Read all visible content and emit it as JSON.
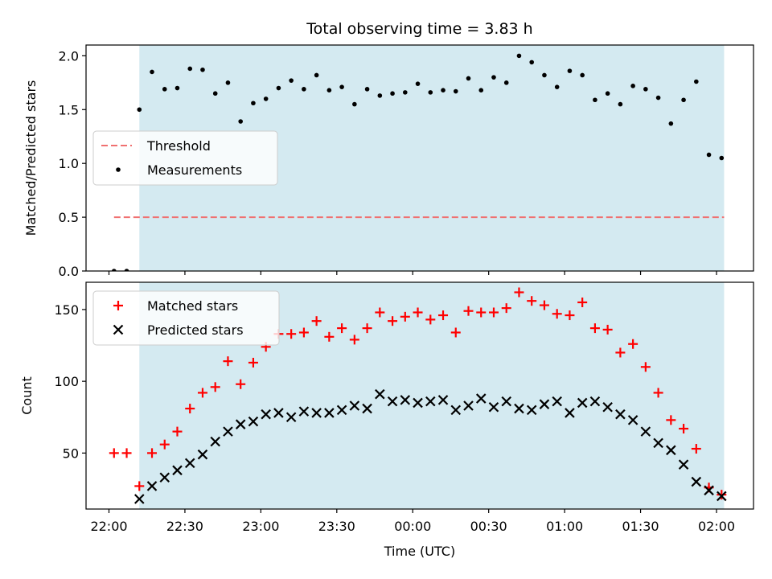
{
  "title": "Total observing time = 3.83 h",
  "colors": {
    "observing_window": "#d4eaf1",
    "threshold": "#f07070",
    "measurements": "#000000",
    "matched": "#ff0000",
    "predicted": "#000000"
  },
  "chart_data": [
    {
      "type": "scatter",
      "panel": "top",
      "ylabel": "Matched/Predicted stars",
      "ylim": [
        0,
        2.1
      ],
      "yticks": [
        0,
        0.5,
        1.0,
        1.5,
        2.0
      ],
      "ytick_labels": [
        "0.0",
        "0.5",
        "1.0",
        "1.5",
        "2.0"
      ],
      "legend": {
        "placement": "center-left",
        "entries": [
          "Threshold",
          "Measurements"
        ]
      },
      "observing_window": {
        "start": "22:12",
        "end": "02:03"
      },
      "threshold": {
        "value": 0.5,
        "start": "22:02",
        "end": "02:03"
      },
      "series": [
        {
          "name": "Measurements",
          "marker": "dot",
          "x": [
            "22:02",
            "22:07",
            "22:12",
            "22:17",
            "22:22",
            "22:27",
            "22:32",
            "22:37",
            "22:42",
            "22:47",
            "22:52",
            "22:57",
            "23:02",
            "23:07",
            "23:12",
            "23:17",
            "23:22",
            "23:27",
            "23:32",
            "23:37",
            "23:42",
            "23:47",
            "23:52",
            "23:57",
            "00:02",
            "00:07",
            "00:12",
            "00:17",
            "00:22",
            "00:27",
            "00:32",
            "00:37",
            "00:42",
            "00:47",
            "00:52",
            "00:57",
            "01:02",
            "01:07",
            "01:12",
            "01:17",
            "01:22",
            "01:27",
            "01:32",
            "01:37",
            "01:42",
            "01:47",
            "01:52",
            "01:57",
            "02:02"
          ],
          "values": [
            0.0,
            0.0,
            1.5,
            1.85,
            1.69,
            1.7,
            1.88,
            1.87,
            1.65,
            1.75,
            1.39,
            1.56,
            1.6,
            1.7,
            1.77,
            1.69,
            1.82,
            1.68,
            1.71,
            1.55,
            1.69,
            1.63,
            1.65,
            1.66,
            1.74,
            1.66,
            1.68,
            1.67,
            1.79,
            1.68,
            1.8,
            1.75,
            2.0,
            1.94,
            1.82,
            1.71,
            1.86,
            1.82,
            1.59,
            1.65,
            1.55,
            1.72,
            1.69,
            1.61,
            1.37,
            1.59,
            1.76,
            1.08,
            1.05
          ]
        }
      ]
    },
    {
      "type": "scatter",
      "panel": "bottom",
      "xlabel": "Time (UTC)",
      "ylabel": "Count",
      "ylim": [
        11,
        169
      ],
      "yticks": [
        50,
        100,
        150
      ],
      "ytick_labels": [
        "50",
        "100",
        "150"
      ],
      "xticks": [
        "22:00",
        "22:30",
        "23:00",
        "23:30",
        "00:00",
        "00:30",
        "01:00",
        "01:30",
        "02:00"
      ],
      "legend": {
        "placement": "top-left",
        "entries": [
          "Matched stars",
          "Predicted stars"
        ]
      },
      "observing_window": {
        "start": "22:12",
        "end": "02:03"
      },
      "series": [
        {
          "name": "Matched stars",
          "marker": "plus",
          "x": [
            "22:02",
            "22:07",
            "22:12",
            "22:17",
            "22:22",
            "22:27",
            "22:32",
            "22:37",
            "22:42",
            "22:47",
            "22:52",
            "22:57",
            "23:02",
            "23:07",
            "23:12",
            "23:17",
            "23:22",
            "23:27",
            "23:32",
            "23:37",
            "23:42",
            "23:47",
            "23:52",
            "23:57",
            "00:02",
            "00:07",
            "00:12",
            "00:17",
            "00:22",
            "00:27",
            "00:32",
            "00:37",
            "00:42",
            "00:47",
            "00:52",
            "00:57",
            "01:02",
            "01:07",
            "01:12",
            "01:17",
            "01:22",
            "01:27",
            "01:32",
            "01:37",
            "01:42",
            "01:47",
            "01:52",
            "01:57",
            "02:02"
          ],
          "values": [
            50,
            50,
            27,
            50,
            56,
            65,
            81,
            92,
            96,
            114,
            98,
            113,
            124,
            133,
            133,
            134,
            142,
            131,
            137,
            129,
            137,
            148,
            142,
            145,
            148,
            143,
            146,
            134,
            149,
            148,
            148,
            151,
            162,
            156,
            153,
            147,
            146,
            155,
            137,
            136,
            120,
            126,
            110,
            92,
            73,
            67,
            53,
            26,
            21
          ]
        },
        {
          "name": "Predicted stars",
          "marker": "x",
          "x": [
            "22:12",
            "22:17",
            "22:22",
            "22:27",
            "22:32",
            "22:37",
            "22:42",
            "22:47",
            "22:52",
            "22:57",
            "23:02",
            "23:07",
            "23:12",
            "23:17",
            "23:22",
            "23:27",
            "23:32",
            "23:37",
            "23:42",
            "23:47",
            "23:52",
            "23:57",
            "00:02",
            "00:07",
            "00:12",
            "00:17",
            "00:22",
            "00:27",
            "00:32",
            "00:37",
            "00:42",
            "00:47",
            "00:52",
            "00:57",
            "01:02",
            "01:07",
            "01:12",
            "01:17",
            "01:22",
            "01:27",
            "01:32",
            "01:37",
            "01:42",
            "01:47",
            "01:52",
            "01:57",
            "02:02"
          ],
          "values": [
            18,
            27,
            33,
            38,
            43,
            49,
            58,
            65,
            70,
            72,
            77,
            78,
            75,
            79,
            78,
            78,
            80,
            83,
            81,
            91,
            86,
            87,
            85,
            86,
            87,
            80,
            83,
            88,
            82,
            86,
            81,
            80,
            84,
            86,
            78,
            85,
            86,
            82,
            77,
            73,
            65,
            57,
            52,
            42,
            30,
            24,
            20
          ]
        }
      ]
    }
  ]
}
